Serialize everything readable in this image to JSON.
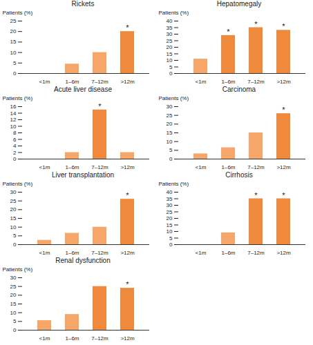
{
  "chart_data": [
    {
      "type": "bar",
      "title": "Rickets",
      "y_label": "Patients (%)",
      "categories": [
        "<1m",
        "1–6m",
        "7–12m",
        ">12m"
      ],
      "values": [
        0,
        4.5,
        10,
        20
      ],
      "colors": [
        "#f5a668",
        "#f5a668",
        "#f5a668",
        "#ef8a3c"
      ],
      "annotations": [
        null,
        null,
        null,
        "*"
      ],
      "ylim": [
        0,
        25
      ],
      "yticks": [
        0,
        5,
        10,
        15,
        20,
        25
      ]
    },
    {
      "type": "bar",
      "title": "Hepatomegaly",
      "y_label": "Patients (%)",
      "categories": [
        "<1m",
        "1–6m",
        "7–12m",
        ">12m"
      ],
      "values": [
        11,
        29,
        35,
        33
      ],
      "colors": [
        "#f5a668",
        "#ef8a3c",
        "#ef8a3c",
        "#ef8a3c"
      ],
      "annotations": [
        null,
        "*",
        "*",
        "*"
      ],
      "ylim": [
        0,
        40
      ],
      "yticks": [
        0,
        5,
        10,
        15,
        20,
        25,
        30,
        35,
        40
      ]
    },
    {
      "type": "bar",
      "title": "Acute liver disease",
      "y_label": "Patients (%)",
      "categories": [
        "<1m",
        "1–6m",
        "7–12m",
        ">12m"
      ],
      "values": [
        0,
        2,
        15,
        2
      ],
      "colors": [
        "#f5a668",
        "#f5a668",
        "#ef8a3c",
        "#f5a668"
      ],
      "annotations": [
        null,
        null,
        "*",
        null
      ],
      "ylim": [
        0,
        16
      ],
      "yticks": [
        0,
        2,
        4,
        6,
        8,
        10,
        12,
        14,
        16
      ]
    },
    {
      "type": "bar",
      "title": "Carcinoma",
      "y_label": "Patients (%)",
      "categories": [
        "<1m",
        "1–6m",
        "7–12m",
        ">12m"
      ],
      "values": [
        3,
        6.5,
        15,
        26
      ],
      "colors": [
        "#f5a668",
        "#f5a668",
        "#f5a668",
        "#ef8a3c"
      ],
      "annotations": [
        null,
        null,
        null,
        "*"
      ],
      "ylim": [
        0,
        30
      ],
      "yticks": [
        0,
        5,
        10,
        15,
        20,
        25,
        30
      ]
    },
    {
      "type": "bar",
      "title": "Liver transplantation",
      "y_label": "Patients (%)",
      "categories": [
        "<1m",
        "1–6m",
        "7–12m",
        ">12m"
      ],
      "values": [
        2.5,
        6.5,
        10,
        26
      ],
      "colors": [
        "#f5a668",
        "#f5a668",
        "#f5a668",
        "#ef8a3c"
      ],
      "annotations": [
        null,
        null,
        null,
        "*"
      ],
      "ylim": [
        0,
        30
      ],
      "yticks": [
        0,
        5,
        10,
        15,
        20,
        25,
        30
      ]
    },
    {
      "type": "bar",
      "title": "Cirrhosis",
      "y_label": "Patients (%)",
      "categories": [
        "<1m",
        "1–6m",
        "7–12m",
        ">12m"
      ],
      "values": [
        0,
        9,
        35,
        35
      ],
      "colors": [
        "#f5a668",
        "#f5a668",
        "#ef8a3c",
        "#ef8a3c"
      ],
      "annotations": [
        null,
        null,
        "*",
        "*"
      ],
      "ylim": [
        0,
        40
      ],
      "yticks": [
        0,
        5,
        10,
        15,
        20,
        25,
        30,
        35,
        40
      ]
    },
    {
      "type": "bar",
      "title": "Renal dysfunction",
      "y_label": "Patients (%)",
      "categories": [
        "<1m",
        "1–6m",
        "7–12m",
        ">12m"
      ],
      "values": [
        5.5,
        9,
        25,
        24
      ],
      "colors": [
        "#f5a668",
        "#f5a668",
        "#ef8a3c",
        "#ef8a3c"
      ],
      "annotations": [
        null,
        null,
        null,
        "*"
      ],
      "ylim": [
        0,
        30
      ],
      "yticks": [
        0,
        5,
        10,
        15,
        20,
        25,
        30
      ]
    }
  ]
}
